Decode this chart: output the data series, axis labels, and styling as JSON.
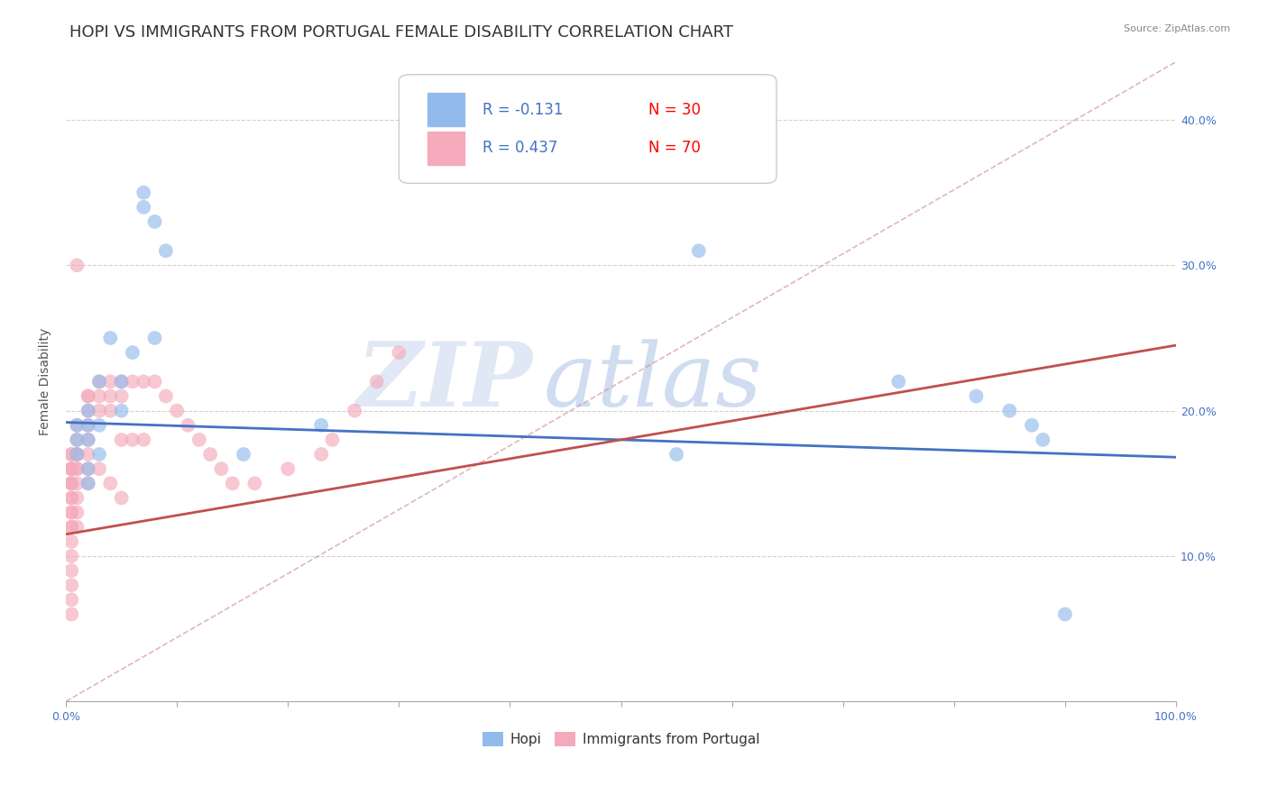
{
  "title": "HOPI VS IMMIGRANTS FROM PORTUGAL FEMALE DISABILITY CORRELATION CHART",
  "source": "Source: ZipAtlas.com",
  "ylabel": "Female Disability",
  "xlim": [
    0.0,
    1.0
  ],
  "ylim": [
    0.0,
    0.44
  ],
  "hopi_R": -0.131,
  "hopi_N": 30,
  "portugal_R": 0.437,
  "portugal_N": 70,
  "hopi_color": "#92BBEC",
  "portugal_color": "#F4AABB",
  "hopi_line_color": "#4472C4",
  "portugal_line_color": "#C0504D",
  "legend_R_color": "#4472C4",
  "legend_N_color": "#FF0000",
  "hopi_points_x": [
    0.01,
    0.01,
    0.01,
    0.02,
    0.02,
    0.02,
    0.02,
    0.02,
    0.03,
    0.03,
    0.03,
    0.04,
    0.05,
    0.05,
    0.06,
    0.07,
    0.07,
    0.08,
    0.08,
    0.09,
    0.16,
    0.23,
    0.55,
    0.57,
    0.75,
    0.82,
    0.85,
    0.87,
    0.88,
    0.9
  ],
  "hopi_points_y": [
    0.19,
    0.18,
    0.17,
    0.2,
    0.19,
    0.18,
    0.16,
    0.15,
    0.22,
    0.19,
    0.17,
    0.25,
    0.22,
    0.2,
    0.24,
    0.35,
    0.34,
    0.33,
    0.25,
    0.31,
    0.17,
    0.19,
    0.17,
    0.31,
    0.22,
    0.21,
    0.2,
    0.19,
    0.18,
    0.06
  ],
  "portugal_points_x": [
    0.005,
    0.005,
    0.005,
    0.005,
    0.005,
    0.005,
    0.005,
    0.005,
    0.005,
    0.005,
    0.005,
    0.005,
    0.005,
    0.005,
    0.005,
    0.005,
    0.005,
    0.005,
    0.005,
    0.005,
    0.01,
    0.01,
    0.01,
    0.01,
    0.01,
    0.01,
    0.01,
    0.01,
    0.01,
    0.01,
    0.01,
    0.02,
    0.02,
    0.02,
    0.02,
    0.02,
    0.02,
    0.02,
    0.02,
    0.03,
    0.03,
    0.03,
    0.03,
    0.04,
    0.04,
    0.04,
    0.04,
    0.05,
    0.05,
    0.05,
    0.05,
    0.06,
    0.06,
    0.07,
    0.07,
    0.08,
    0.09,
    0.1,
    0.11,
    0.12,
    0.13,
    0.14,
    0.15,
    0.17,
    0.2,
    0.23,
    0.24,
    0.26,
    0.28,
    0.3
  ],
  "portugal_points_y": [
    0.17,
    0.17,
    0.16,
    0.16,
    0.16,
    0.15,
    0.15,
    0.15,
    0.14,
    0.14,
    0.13,
    0.13,
    0.12,
    0.12,
    0.11,
    0.1,
    0.09,
    0.08,
    0.07,
    0.06,
    0.19,
    0.18,
    0.17,
    0.17,
    0.16,
    0.16,
    0.15,
    0.14,
    0.13,
    0.12,
    0.3,
    0.21,
    0.21,
    0.2,
    0.19,
    0.18,
    0.17,
    0.16,
    0.15,
    0.22,
    0.21,
    0.2,
    0.16,
    0.22,
    0.21,
    0.2,
    0.15,
    0.22,
    0.21,
    0.18,
    0.14,
    0.22,
    0.18,
    0.22,
    0.18,
    0.22,
    0.21,
    0.2,
    0.19,
    0.18,
    0.17,
    0.16,
    0.15,
    0.15,
    0.16,
    0.17,
    0.18,
    0.2,
    0.22,
    0.24
  ],
  "grid_color": "#CCCCCC",
  "background_color": "#FFFFFF",
  "title_fontsize": 13,
  "axis_label_fontsize": 10,
  "tick_fontsize": 9,
  "hopi_line_start_y": 0.192,
  "hopi_line_end_y": 0.168,
  "portugal_line_start_y": 0.115,
  "portugal_line_end_y": 0.245,
  "diag_line_start_y": 0.0,
  "diag_line_end_y": 0.44
}
